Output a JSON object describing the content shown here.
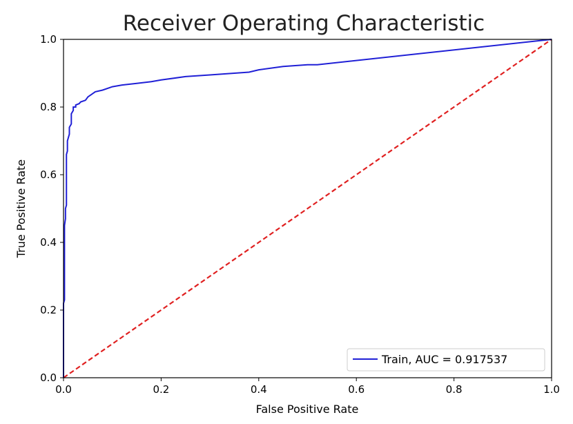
{
  "chart_data": {
    "type": "line",
    "title": "Receiver Operating Characteristic",
    "xlabel": "False Positive Rate",
    "ylabel": "True Positive Rate",
    "xlim": [
      0.0,
      1.0
    ],
    "ylim": [
      0.0,
      1.0
    ],
    "xticks": [
      "0.0",
      "0.2",
      "0.4",
      "0.6",
      "0.8",
      "1.0"
    ],
    "yticks": [
      "0.0",
      "0.2",
      "0.4",
      "0.6",
      "0.8",
      "1.0"
    ],
    "grid": false,
    "legend_position": "bottom-right",
    "series": [
      {
        "name": "Train, AUC = 0.917537",
        "color": "#1f1fd6",
        "style": "solid",
        "x": [
          0.0,
          0.0,
          0.002,
          0.002,
          0.004,
          0.004,
          0.006,
          0.006,
          0.008,
          0.008,
          0.012,
          0.012,
          0.016,
          0.016,
          0.02,
          0.02,
          0.025,
          0.025,
          0.032,
          0.035,
          0.045,
          0.05,
          0.06,
          0.065,
          0.08,
          0.1,
          0.12,
          0.15,
          0.18,
          0.2,
          0.25,
          0.3,
          0.35,
          0.38,
          0.4,
          0.45,
          0.5,
          0.52,
          1.0
        ],
        "y": [
          0.0,
          0.22,
          0.23,
          0.45,
          0.47,
          0.5,
          0.51,
          0.66,
          0.67,
          0.7,
          0.72,
          0.74,
          0.75,
          0.78,
          0.79,
          0.8,
          0.8,
          0.806,
          0.81,
          0.815,
          0.82,
          0.83,
          0.84,
          0.845,
          0.85,
          0.86,
          0.865,
          0.87,
          0.875,
          0.88,
          0.89,
          0.895,
          0.9,
          0.903,
          0.91,
          0.92,
          0.925,
          0.925,
          1.0
        ]
      },
      {
        "name": "",
        "color": "#e02020",
        "style": "dashed",
        "x": [
          0.0,
          1.0
        ],
        "y": [
          0.0,
          1.0
        ]
      }
    ]
  }
}
